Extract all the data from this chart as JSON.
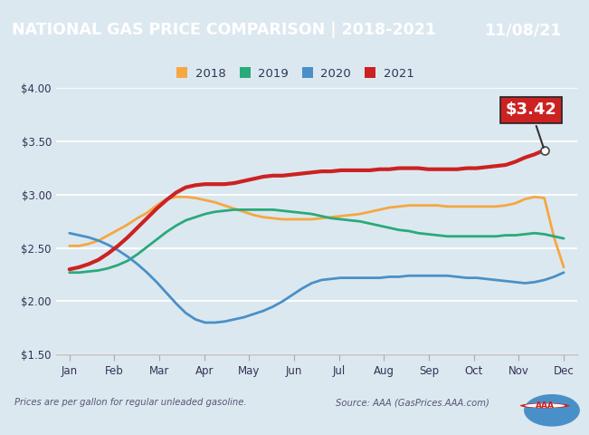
{
  "title_left": "NATIONAL GAS PRICE COMPARISON | 2018-2021",
  "title_right": "11/08/21",
  "title_bg_left": "#1b527a",
  "title_bg_right": "#4a8ab5",
  "title_text_color": "#ffffff",
  "chart_bg": "#dce8f0",
  "footer_text_left": "Prices are per gallon for regular unleaded gasoline.",
  "footer_text_right": "Source: AAA (GasPrices.AAA.com)",
  "annotation_label": "$3.42",
  "annotation_bg": "#cc2222",
  "months": [
    "Jan",
    "Feb",
    "Mar",
    "Apr",
    "May",
    "Jun",
    "Jul",
    "Aug",
    "Sep",
    "Oct",
    "Nov",
    "Dec"
  ],
  "ylim": [
    1.5,
    4.0
  ],
  "yticks": [
    1.5,
    2.0,
    2.5,
    3.0,
    3.5,
    4.0
  ],
  "series": {
    "2018": {
      "color": "#f5a742",
      "linewidth": 2.0,
      "values": [
        2.52,
        2.52,
        2.54,
        2.57,
        2.62,
        2.67,
        2.72,
        2.78,
        2.83,
        2.9,
        2.96,
        2.98,
        2.98,
        2.97,
        2.95,
        2.93,
        2.9,
        2.87,
        2.84,
        2.81,
        2.79,
        2.78,
        2.77,
        2.77,
        2.77,
        2.77,
        2.78,
        2.79,
        2.8,
        2.81,
        2.82,
        2.84,
        2.86,
        2.88,
        2.89,
        2.9,
        2.9,
        2.9,
        2.9,
        2.89,
        2.89,
        2.89,
        2.89,
        2.89,
        2.89,
        2.9,
        2.92,
        2.96,
        2.98,
        2.97,
        2.6,
        2.32
      ]
    },
    "2019": {
      "color": "#2aaa7a",
      "linewidth": 2.0,
      "values": [
        2.27,
        2.27,
        2.28,
        2.29,
        2.31,
        2.34,
        2.38,
        2.44,
        2.51,
        2.58,
        2.65,
        2.71,
        2.76,
        2.79,
        2.82,
        2.84,
        2.85,
        2.86,
        2.86,
        2.86,
        2.86,
        2.86,
        2.85,
        2.84,
        2.83,
        2.82,
        2.8,
        2.78,
        2.77,
        2.76,
        2.75,
        2.73,
        2.71,
        2.69,
        2.67,
        2.66,
        2.64,
        2.63,
        2.62,
        2.61,
        2.61,
        2.61,
        2.61,
        2.61,
        2.61,
        2.62,
        2.62,
        2.63,
        2.64,
        2.63,
        2.61,
        2.59
      ]
    },
    "2020": {
      "color": "#4a90c8",
      "linewidth": 2.0,
      "values": [
        2.64,
        2.62,
        2.6,
        2.57,
        2.53,
        2.48,
        2.42,
        2.35,
        2.27,
        2.18,
        2.08,
        1.98,
        1.89,
        1.83,
        1.8,
        1.8,
        1.81,
        1.83,
        1.85,
        1.88,
        1.91,
        1.95,
        2.0,
        2.06,
        2.12,
        2.17,
        2.2,
        2.21,
        2.22,
        2.22,
        2.22,
        2.22,
        2.22,
        2.23,
        2.23,
        2.24,
        2.24,
        2.24,
        2.24,
        2.24,
        2.23,
        2.22,
        2.22,
        2.21,
        2.2,
        2.19,
        2.18,
        2.17,
        2.18,
        2.2,
        2.23,
        2.27
      ]
    },
    "2021": {
      "color": "#cc2222",
      "linewidth": 3.0,
      "values": [
        2.3,
        2.32,
        2.35,
        2.39,
        2.45,
        2.52,
        2.6,
        2.69,
        2.78,
        2.87,
        2.95,
        3.02,
        3.07,
        3.09,
        3.1,
        3.1,
        3.1,
        3.11,
        3.13,
        3.15,
        3.17,
        3.18,
        3.18,
        3.19,
        3.2,
        3.21,
        3.22,
        3.22,
        3.23,
        3.23,
        3.23,
        3.23,
        3.24,
        3.24,
        3.25,
        3.25,
        3.25,
        3.24,
        3.24,
        3.24,
        3.24,
        3.25,
        3.25,
        3.26,
        3.27,
        3.28,
        3.31,
        3.35,
        3.38,
        3.42,
        null,
        null
      ]
    }
  }
}
